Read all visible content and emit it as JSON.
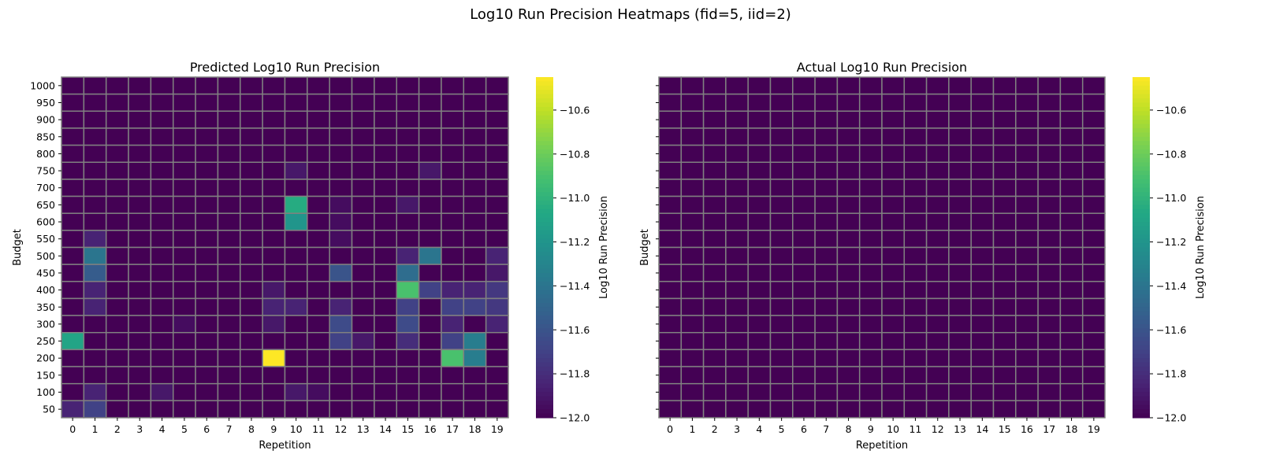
{
  "figure": {
    "suptitle": "Log10 Run Precision Heatmaps (fid=5, iid=2)"
  },
  "chart_data": [
    {
      "type": "heatmap",
      "title": "Predicted Log10 Run Precision",
      "xlabel": "Repetition",
      "ylabel": "Budget",
      "x": [
        0,
        1,
        2,
        3,
        4,
        5,
        6,
        7,
        8,
        9,
        10,
        11,
        12,
        13,
        14,
        15,
        16,
        17,
        18,
        19
      ],
      "y": [
        1000,
        950,
        900,
        850,
        800,
        750,
        700,
        650,
        600,
        550,
        500,
        450,
        400,
        350,
        300,
        250,
        200,
        150,
        100,
        50
      ],
      "baseline": -12.0,
      "cells": [
        {
          "x": 10,
          "y": 750,
          "value": -11.9
        },
        {
          "x": 16,
          "y": 750,
          "value": -11.9
        },
        {
          "x": 10,
          "y": 650,
          "value": -11.05
        },
        {
          "x": 15,
          "y": 650,
          "value": -11.9
        },
        {
          "x": 12,
          "y": 650,
          "value": -11.95
        },
        {
          "x": 10,
          "y": 600,
          "value": -11.2
        },
        {
          "x": 12,
          "y": 600,
          "value": -11.95
        },
        {
          "x": 1,
          "y": 550,
          "value": -11.85
        },
        {
          "x": 12,
          "y": 550,
          "value": -11.95
        },
        {
          "x": 1,
          "y": 500,
          "value": -11.4
        },
        {
          "x": 15,
          "y": 500,
          "value": -11.85
        },
        {
          "x": 16,
          "y": 500,
          "value": -11.4
        },
        {
          "x": 19,
          "y": 500,
          "value": -11.85
        },
        {
          "x": 1,
          "y": 450,
          "value": -11.55
        },
        {
          "x": 12,
          "y": 450,
          "value": -11.6
        },
        {
          "x": 15,
          "y": 450,
          "value": -11.45
        },
        {
          "x": 19,
          "y": 450,
          "value": -11.9
        },
        {
          "x": 1,
          "y": 400,
          "value": -11.85
        },
        {
          "x": 9,
          "y": 400,
          "value": -11.9
        },
        {
          "x": 15,
          "y": 400,
          "value": -10.9
        },
        {
          "x": 16,
          "y": 400,
          "value": -11.7
        },
        {
          "x": 17,
          "y": 400,
          "value": -11.85
        },
        {
          "x": 18,
          "y": 400,
          "value": -11.85
        },
        {
          "x": 19,
          "y": 400,
          "value": -11.75
        },
        {
          "x": 1,
          "y": 350,
          "value": -11.85
        },
        {
          "x": 9,
          "y": 350,
          "value": -11.85
        },
        {
          "x": 10,
          "y": 350,
          "value": -11.85
        },
        {
          "x": 12,
          "y": 350,
          "value": -11.85
        },
        {
          "x": 15,
          "y": 350,
          "value": -11.7
        },
        {
          "x": 17,
          "y": 350,
          "value": -11.7
        },
        {
          "x": 18,
          "y": 350,
          "value": -11.7
        },
        {
          "x": 19,
          "y": 350,
          "value": -11.75
        },
        {
          "x": 5,
          "y": 300,
          "value": -11.95
        },
        {
          "x": 9,
          "y": 300,
          "value": -11.9
        },
        {
          "x": 12,
          "y": 300,
          "value": -11.65
        },
        {
          "x": 15,
          "y": 300,
          "value": -11.65
        },
        {
          "x": 17,
          "y": 300,
          "value": -11.85
        },
        {
          "x": 19,
          "y": 300,
          "value": -11.85
        },
        {
          "x": 0,
          "y": 250,
          "value": -11.1
        },
        {
          "x": 12,
          "y": 250,
          "value": -11.7
        },
        {
          "x": 13,
          "y": 250,
          "value": -11.9
        },
        {
          "x": 15,
          "y": 250,
          "value": -11.8
        },
        {
          "x": 17,
          "y": 250,
          "value": -11.7
        },
        {
          "x": 18,
          "y": 250,
          "value": -11.35
        },
        {
          "x": 9,
          "y": 200,
          "value": -10.45
        },
        {
          "x": 17,
          "y": 200,
          "value": -10.9
        },
        {
          "x": 18,
          "y": 200,
          "value": -11.35
        },
        {
          "x": 1,
          "y": 100,
          "value": -11.85
        },
        {
          "x": 4,
          "y": 100,
          "value": -11.9
        },
        {
          "x": 10,
          "y": 100,
          "value": -11.9
        },
        {
          "x": 11,
          "y": 100,
          "value": -11.95
        },
        {
          "x": 0,
          "y": 50,
          "value": -11.85
        },
        {
          "x": 1,
          "y": 50,
          "value": -11.7
        }
      ],
      "colorbar": {
        "label": "Log10 Run Precision",
        "range": [
          -12.0,
          -10.45
        ],
        "ticks": [
          "-10.6",
          "-10.8",
          "-11.0",
          "-11.2",
          "-11.4",
          "-11.6",
          "-11.8",
          "-12.0"
        ]
      },
      "colormap": "viridis",
      "gridline_color": "#808080"
    },
    {
      "type": "heatmap",
      "title": "Actual Log10 Run Precision",
      "xlabel": "Repetition",
      "ylabel": "Budget",
      "x": [
        0,
        1,
        2,
        3,
        4,
        5,
        6,
        7,
        8,
        9,
        10,
        11,
        12,
        13,
        14,
        15,
        16,
        17,
        18,
        19
      ],
      "y": [
        1000,
        950,
        900,
        850,
        800,
        750,
        700,
        650,
        600,
        550,
        500,
        450,
        400,
        350,
        300,
        250,
        200,
        150,
        100,
        50
      ],
      "baseline": -12.0,
      "cells": [],
      "colorbar": {
        "label": "Log10 Run Precision",
        "range": [
          -12.0,
          -10.45
        ],
        "ticks": [
          "-10.6",
          "-10.8",
          "-11.0",
          "-11.2",
          "-11.4",
          "-11.6",
          "-11.8",
          "-12.0"
        ]
      },
      "colormap": "viridis",
      "gridline_color": "#808080"
    }
  ]
}
